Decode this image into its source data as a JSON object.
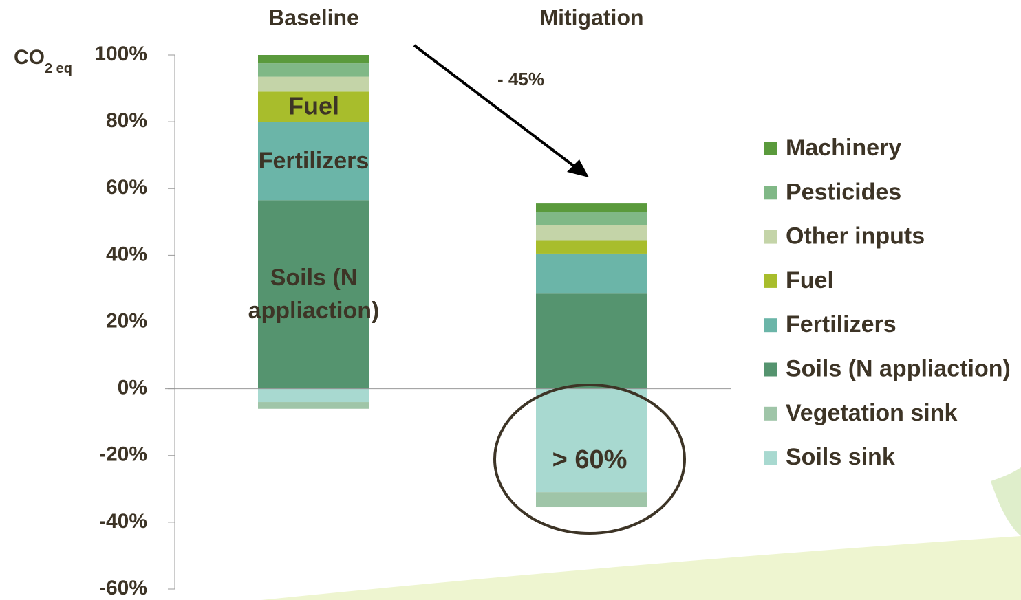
{
  "chart_data": {
    "type": "stacked_bar",
    "categories": [
      "Baseline",
      "Mitigation"
    ],
    "ylabel": "CO",
    "ylabel_sub": "2 eq",
    "series": [
      {
        "name": "Soils sink",
        "color": "#a8d9d0",
        "values": [
          -4,
          -31
        ]
      },
      {
        "name": "Vegetation sink",
        "color": "#9fc5a8",
        "values": [
          -2,
          -4.5
        ]
      },
      {
        "name": "Soils (N appliaction)",
        "color": "#55946f",
        "values": [
          56.5,
          28.5
        ]
      },
      {
        "name": "Fertilizers",
        "color": "#6bb5a8",
        "values": [
          23.5,
          12
        ]
      },
      {
        "name": "Fuel",
        "color": "#a8bd2c",
        "values": [
          9,
          4
        ]
      },
      {
        "name": "Other inputs",
        "color": "#c4d4a8",
        "values": [
          4.5,
          4.5
        ]
      },
      {
        "name": "Pesticides",
        "color": "#80b886",
        "values": [
          4,
          4
        ]
      },
      {
        "name": "Machinery",
        "color": "#5a9a3c",
        "values": [
          2.5,
          2.5
        ]
      }
    ],
    "ylim": [
      -60,
      100
    ],
    "yticks": [
      {
        "value": -60,
        "label": "-60%"
      },
      {
        "value": -40,
        "label": "-40%"
      },
      {
        "value": -20,
        "label": "-20%"
      },
      {
        "value": 0,
        "label": "0%"
      },
      {
        "value": 20,
        "label": "20%"
      },
      {
        "value": 40,
        "label": "40%"
      },
      {
        "value": 60,
        "label": "60%"
      },
      {
        "value": 80,
        "label": "80%"
      },
      {
        "value": 100,
        "label": "100%"
      }
    ],
    "segment_labels": {
      "fuel": "Fuel",
      "fertilizers": "Fertilizers",
      "soils": [
        "Soils (N",
        "appliaction)"
      ]
    },
    "annotations": {
      "reduction": "- 45%",
      "sink_share": "> 60%"
    },
    "legend": "right"
  }
}
